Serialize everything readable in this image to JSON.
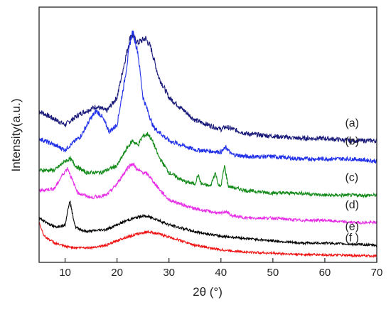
{
  "chart_data": {
    "type": "line",
    "xlabel": "2θ (°)",
    "ylabel": "Intensity(a.u.)",
    "xlim": [
      5,
      70
    ],
    "x_ticks": [
      10,
      20,
      30,
      40,
      50,
      60,
      70
    ],
    "y_scale": "arbitrary units, offset curves",
    "grid": false,
    "legend": "none",
    "series": [
      {
        "name": "(a)",
        "color": "#1a1a7a",
        "x": [
          5,
          10,
          13,
          16,
          18,
          20,
          21.5,
          22.7,
          24,
          25.5,
          26.5,
          28,
          30,
          35,
          40,
          41,
          45,
          50,
          55,
          60,
          65,
          70
        ],
        "y": [
          0.64,
          0.58,
          0.63,
          0.66,
          0.64,
          0.7,
          0.86,
          0.98,
          0.94,
          0.96,
          0.92,
          0.79,
          0.7,
          0.6,
          0.56,
          0.57,
          0.54,
          0.53,
          0.52,
          0.52,
          0.51,
          0.51
        ]
      },
      {
        "name": "(b)",
        "color": "#1f2fe8",
        "x": [
          5,
          10,
          13,
          15,
          16,
          17,
          18.5,
          20,
          21.5,
          22.5,
          23,
          24,
          25,
          27,
          30,
          35,
          40,
          41,
          42,
          45,
          50,
          55,
          60,
          65,
          70
        ],
        "y": [
          0.52,
          0.47,
          0.53,
          0.61,
          0.64,
          0.62,
          0.55,
          0.58,
          0.78,
          0.94,
          0.99,
          0.9,
          0.7,
          0.57,
          0.51,
          0.47,
          0.46,
          0.48,
          0.45,
          0.44,
          0.44,
          0.43,
          0.43,
          0.43,
          0.42
        ]
      },
      {
        "name": "(c)",
        "color": "#118a18",
        "x": [
          5,
          8,
          10,
          11,
          12,
          14,
          17,
          20,
          22,
          23,
          24,
          25,
          26,
          27,
          28,
          30,
          33,
          35,
          35.6,
          36.2,
          38,
          38.9,
          39.6,
          40,
          40.7,
          41.4,
          43,
          45,
          50,
          55,
          60,
          65,
          70
        ],
        "y": [
          0.38,
          0.38,
          0.42,
          0.43,
          0.4,
          0.37,
          0.37,
          0.4,
          0.48,
          0.51,
          0.49,
          0.53,
          0.54,
          0.5,
          0.44,
          0.37,
          0.33,
          0.32,
          0.36,
          0.32,
          0.31,
          0.37,
          0.31,
          0.31,
          0.4,
          0.31,
          0.3,
          0.29,
          0.28,
          0.28,
          0.27,
          0.27,
          0.27
        ]
      },
      {
        "name": "(d)",
        "color": "#e62ee6",
        "x": [
          5,
          8,
          9.5,
          10.5,
          11.5,
          12.5,
          15,
          18,
          20,
          22,
          23,
          24,
          25,
          26,
          28,
          30,
          35,
          40,
          41,
          42,
          45,
          50,
          55,
          60,
          65,
          70
        ],
        "y": [
          0.29,
          0.3,
          0.36,
          0.39,
          0.33,
          0.28,
          0.26,
          0.27,
          0.32,
          0.39,
          0.41,
          0.38,
          0.37,
          0.36,
          0.3,
          0.25,
          0.21,
          0.19,
          0.2,
          0.18,
          0.17,
          0.17,
          0.16,
          0.16,
          0.15,
          0.15
        ]
      },
      {
        "name": "(e)",
        "color": "#000000",
        "x": [
          5,
          8,
          10,
          10.5,
          10.9,
          11.3,
          12,
          14,
          18,
          22,
          25,
          27,
          30,
          35,
          40,
          45,
          50,
          55,
          60,
          65,
          70
        ],
        "y": [
          0.17,
          0.13,
          0.14,
          0.2,
          0.25,
          0.2,
          0.13,
          0.11,
          0.12,
          0.16,
          0.18,
          0.17,
          0.14,
          0.11,
          0.09,
          0.08,
          0.07,
          0.06,
          0.06,
          0.055,
          0.05
        ]
      },
      {
        "name": "(f )",
        "color": "#ee1111",
        "x": [
          5,
          6,
          8,
          10,
          12,
          15,
          18,
          21,
          24,
          26,
          28,
          31,
          35,
          40,
          45,
          50,
          55,
          60,
          65,
          70
        ],
        "y": [
          0.15,
          0.09,
          0.06,
          0.045,
          0.04,
          0.04,
          0.05,
          0.08,
          0.1,
          0.11,
          0.1,
          0.08,
          0.05,
          0.03,
          0.02,
          0.015,
          0.01,
          0.008,
          0.005,
          0.003
        ]
      }
    ]
  }
}
